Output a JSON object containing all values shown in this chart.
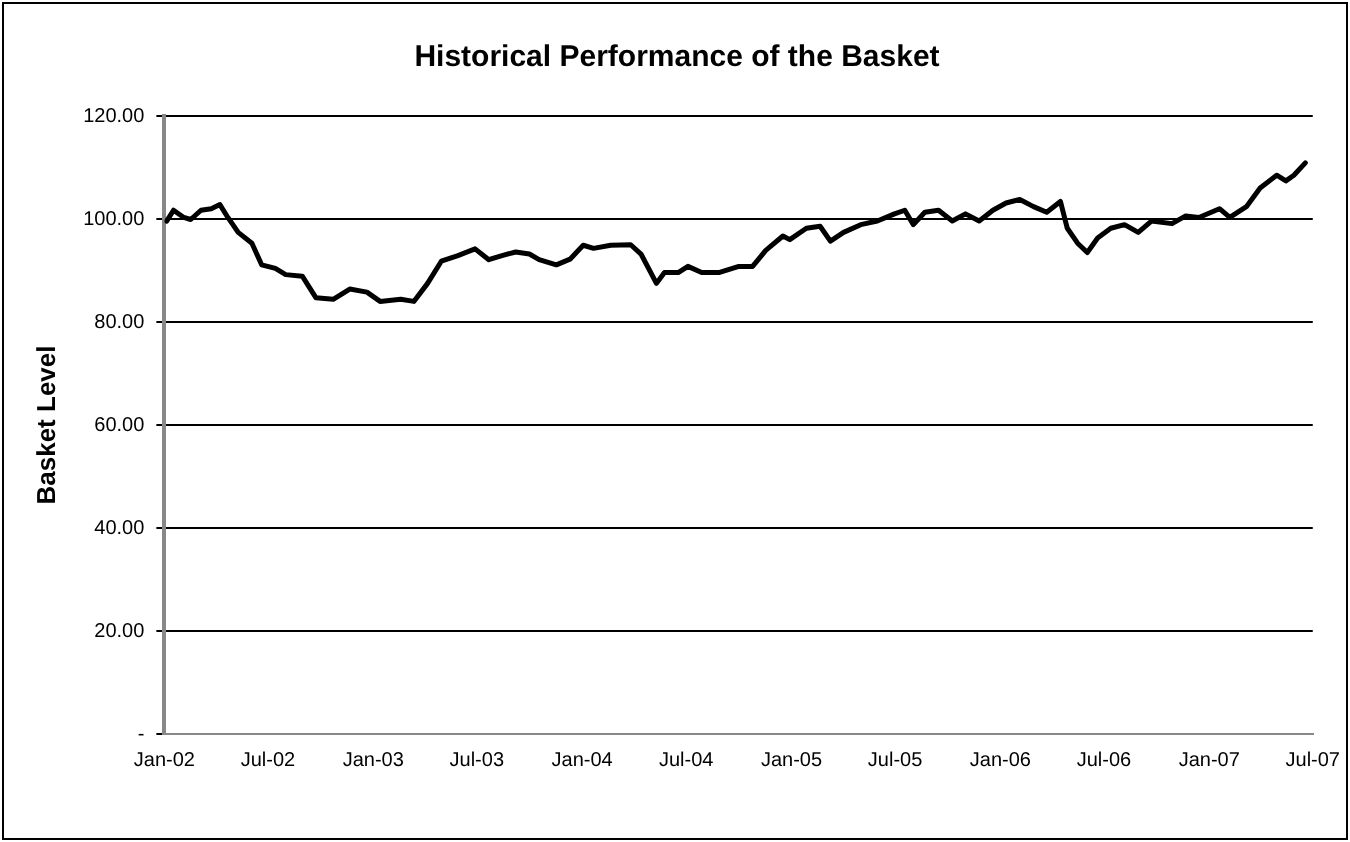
{
  "chart_data": {
    "type": "line",
    "title": "Historical Performance of the Basket",
    "ylabel": "Basket Level",
    "x": [
      "2002-01-05",
      "2002-01-17",
      "2002-02-04",
      "2002-02-16",
      "2002-03-06",
      "2002-03-24",
      "2002-04-08",
      "2002-04-22",
      "2002-05-10",
      "2002-06-03",
      "2002-06-20",
      "2002-07-14",
      "2002-08-01",
      "2002-08-30",
      "2002-09-23",
      "2002-10-23",
      "2002-11-21",
      "2002-12-21",
      "2003-01-13",
      "2003-02-18",
      "2003-03-13",
      "2003-04-06",
      "2003-04-30",
      "2003-05-29",
      "2003-06-28",
      "2003-07-22",
      "2003-08-14",
      "2003-09-07",
      "2003-10-01",
      "2003-10-18",
      "2003-11-17",
      "2003-12-11",
      "2004-01-03",
      "2004-01-21",
      "2004-02-20",
      "2004-03-26",
      "2004-04-13",
      "2004-05-10",
      "2004-05-24",
      "2004-06-17",
      "2004-07-04",
      "2004-07-28",
      "2004-08-27",
      "2004-10-01",
      "2004-10-25",
      "2004-11-17",
      "2004-12-17",
      "2004-12-29",
      "2005-01-27",
      "2005-02-20",
      "2005-03-10",
      "2005-04-02",
      "2005-05-02",
      "2005-05-31",
      "2005-06-30",
      "2005-07-18",
      "2005-08-02",
      "2005-08-22",
      "2005-09-15",
      "2005-10-09",
      "2005-11-01",
      "2005-11-25",
      "2005-12-19",
      "2006-01-11",
      "2006-02-04",
      "2006-02-28",
      "2006-03-23",
      "2006-04-16",
      "2006-04-28",
      "2006-05-16",
      "2006-06-02",
      "2006-06-20",
      "2006-07-13",
      "2006-08-06",
      "2006-08-30",
      "2006-09-22",
      "2006-10-28",
      "2006-11-21",
      "2006-12-14",
      "2007-01-19",
      "2007-02-06",
      "2007-03-07",
      "2007-03-31",
      "2007-04-29",
      "2007-05-15",
      "2007-05-29",
      "2007-06-18"
    ],
    "series": [
      {
        "color": "#000000",
        "values": [
          99.6,
          101.7,
          100.3,
          99.9,
          101.7,
          102,
          102.8,
          100.3,
          97.4,
          95.3,
          91.1,
          90.4,
          89.2,
          88.9,
          84.7,
          84.4,
          86.4,
          85.8,
          84,
          84.4,
          84,
          87.5,
          91.8,
          92.9,
          94.2,
          92.1,
          92.9,
          93.6,
          93.2,
          92.1,
          91.1,
          92.2,
          94.9,
          94.3,
          94.9,
          95,
          93.2,
          87.5,
          89.6,
          89.6,
          90.8,
          89.6,
          89.6,
          90.8,
          90.8,
          93.9,
          96.7,
          96,
          98.2,
          98.6,
          95.7,
          97.4,
          98.9,
          99.6,
          101,
          101.7,
          98.9,
          101.3,
          101.7,
          99.6,
          101,
          99.6,
          101.7,
          103.1,
          103.8,
          102.4,
          101.3,
          103.4,
          98.2,
          95.3,
          93.5,
          96.3,
          98.2,
          98.9,
          97.4,
          99.6,
          99.1,
          100.6,
          100.3,
          102,
          100.3,
          102.4,
          106,
          108.5,
          107.4,
          108.5,
          110.9
        ]
      }
    ],
    "xlim": [
      "2002-01-01",
      "2007-07-01"
    ],
    "xticks": [
      {
        "value": "2002-01-01",
        "label": "Jan-02"
      },
      {
        "value": "2002-07-01",
        "label": "Jul-02"
      },
      {
        "value": "2003-01-01",
        "label": "Jan-03"
      },
      {
        "value": "2003-07-01",
        "label": "Jul-03"
      },
      {
        "value": "2004-01-01",
        "label": "Jan-04"
      },
      {
        "value": "2004-07-01",
        "label": "Jul-04"
      },
      {
        "value": "2005-01-01",
        "label": "Jan-05"
      },
      {
        "value": "2005-07-01",
        "label": "Jul-05"
      },
      {
        "value": "2006-01-01",
        "label": "Jan-06"
      },
      {
        "value": "2006-07-01",
        "label": "Jul-06"
      },
      {
        "value": "2007-01-01",
        "label": "Jan-07"
      },
      {
        "value": "2007-07-01",
        "label": "Jul-07"
      }
    ],
    "ylim": [
      0,
      120
    ],
    "yticks": [
      {
        "value": 0,
        "label": "-"
      },
      {
        "value": 20,
        "label": "20.00"
      },
      {
        "value": 40,
        "label": "40.00"
      },
      {
        "value": 60,
        "label": "60.00"
      },
      {
        "value": 80,
        "label": "80.00"
      },
      {
        "value": 100,
        "label": "100.00"
      },
      {
        "value": 120,
        "label": "120.00"
      }
    ],
    "grid": "y",
    "legend": false,
    "marker": "none",
    "line_style": "solid"
  }
}
